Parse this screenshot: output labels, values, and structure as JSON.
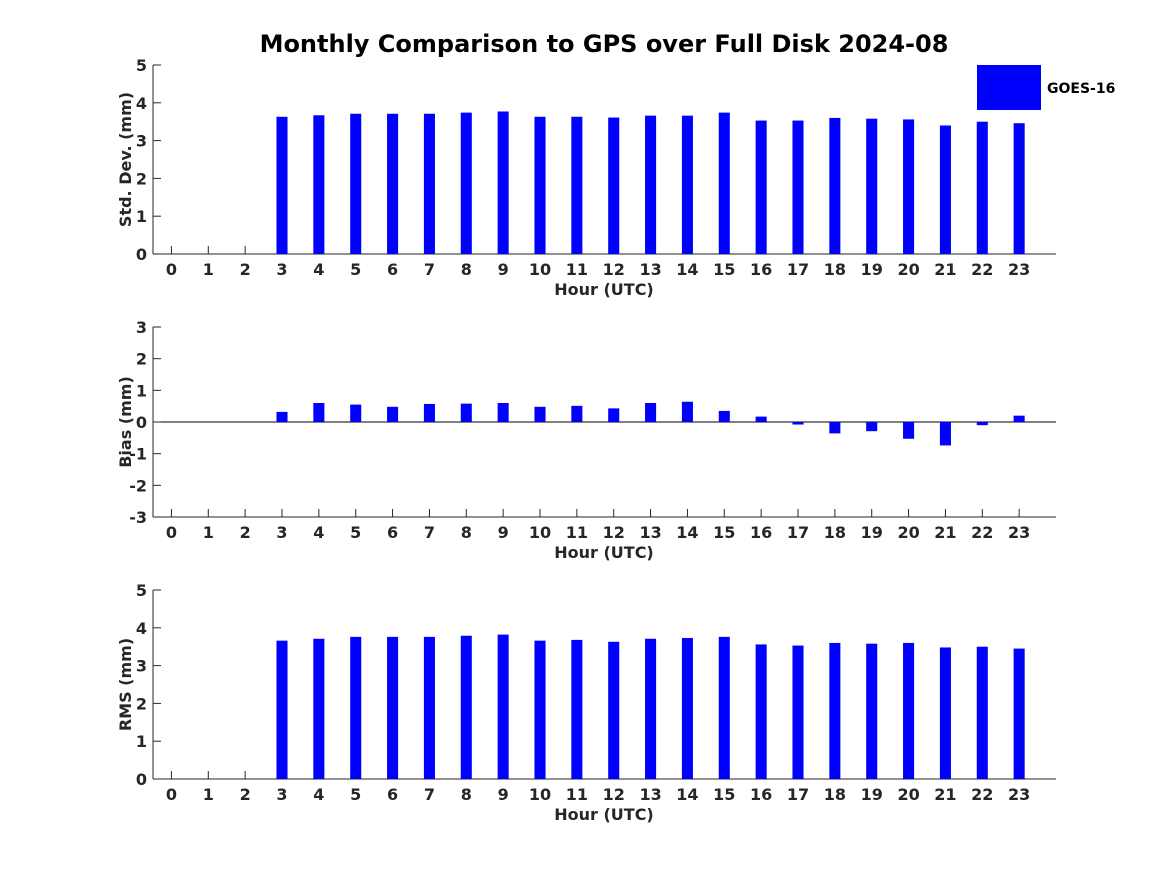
{
  "title": "Monthly Comparison to GPS over Full Disk 2024-08",
  "legend": {
    "label": "GOES-16",
    "color": "#0000ff"
  },
  "chart_data": [
    {
      "type": "bar",
      "name": "std-dev",
      "xlabel": "Hour (UTC)",
      "ylabel": "Std. Dev. (mm)",
      "ylim": [
        0,
        5
      ],
      "yticks": [
        "0",
        "1",
        "2",
        "3",
        "4",
        "5"
      ],
      "categories": [
        "0",
        "1",
        "2",
        "3",
        "4",
        "5",
        "6",
        "7",
        "8",
        "9",
        "10",
        "11",
        "12",
        "13",
        "14",
        "15",
        "16",
        "17",
        "18",
        "19",
        "20",
        "21",
        "22",
        "23"
      ],
      "series": [
        {
          "name": "GOES-16",
          "values": [
            null,
            null,
            null,
            3.63,
            3.67,
            3.71,
            3.71,
            3.71,
            3.74,
            3.77,
            3.63,
            3.63,
            3.61,
            3.66,
            3.66,
            3.74,
            3.53,
            3.53,
            3.6,
            3.58,
            3.56,
            3.4,
            3.5,
            3.46
          ]
        }
      ]
    },
    {
      "type": "bar",
      "name": "bias",
      "xlabel": "Hour (UTC)",
      "ylabel": "Bias (mm)",
      "ylim": [
        -3,
        3
      ],
      "yticks": [
        "-3",
        "-2",
        "-1",
        "0",
        "1",
        "2",
        "3"
      ],
      "categories": [
        "0",
        "1",
        "2",
        "3",
        "4",
        "5",
        "6",
        "7",
        "8",
        "9",
        "10",
        "11",
        "12",
        "13",
        "14",
        "15",
        "16",
        "17",
        "18",
        "19",
        "20",
        "21",
        "22",
        "23"
      ],
      "series": [
        {
          "name": "GOES-16",
          "values": [
            null,
            null,
            null,
            0.32,
            0.6,
            0.55,
            0.48,
            0.57,
            0.58,
            0.6,
            0.48,
            0.51,
            0.43,
            0.6,
            0.64,
            0.35,
            0.17,
            -0.08,
            -0.36,
            -0.29,
            -0.53,
            -0.74,
            -0.1,
            0.2
          ]
        }
      ]
    },
    {
      "type": "bar",
      "name": "rms",
      "xlabel": "Hour (UTC)",
      "ylabel": "RMS (mm)",
      "ylim": [
        0,
        5
      ],
      "yticks": [
        "0",
        "1",
        "2",
        "3",
        "4",
        "5"
      ],
      "categories": [
        "0",
        "1",
        "2",
        "3",
        "4",
        "5",
        "6",
        "7",
        "8",
        "9",
        "10",
        "11",
        "12",
        "13",
        "14",
        "15",
        "16",
        "17",
        "18",
        "19",
        "20",
        "21",
        "22",
        "23"
      ],
      "series": [
        {
          "name": "GOES-16",
          "values": [
            null,
            null,
            null,
            3.66,
            3.71,
            3.76,
            3.76,
            3.76,
            3.79,
            3.82,
            3.66,
            3.68,
            3.63,
            3.71,
            3.73,
            3.76,
            3.56,
            3.53,
            3.6,
            3.58,
            3.6,
            3.48,
            3.5,
            3.45
          ]
        }
      ]
    }
  ]
}
